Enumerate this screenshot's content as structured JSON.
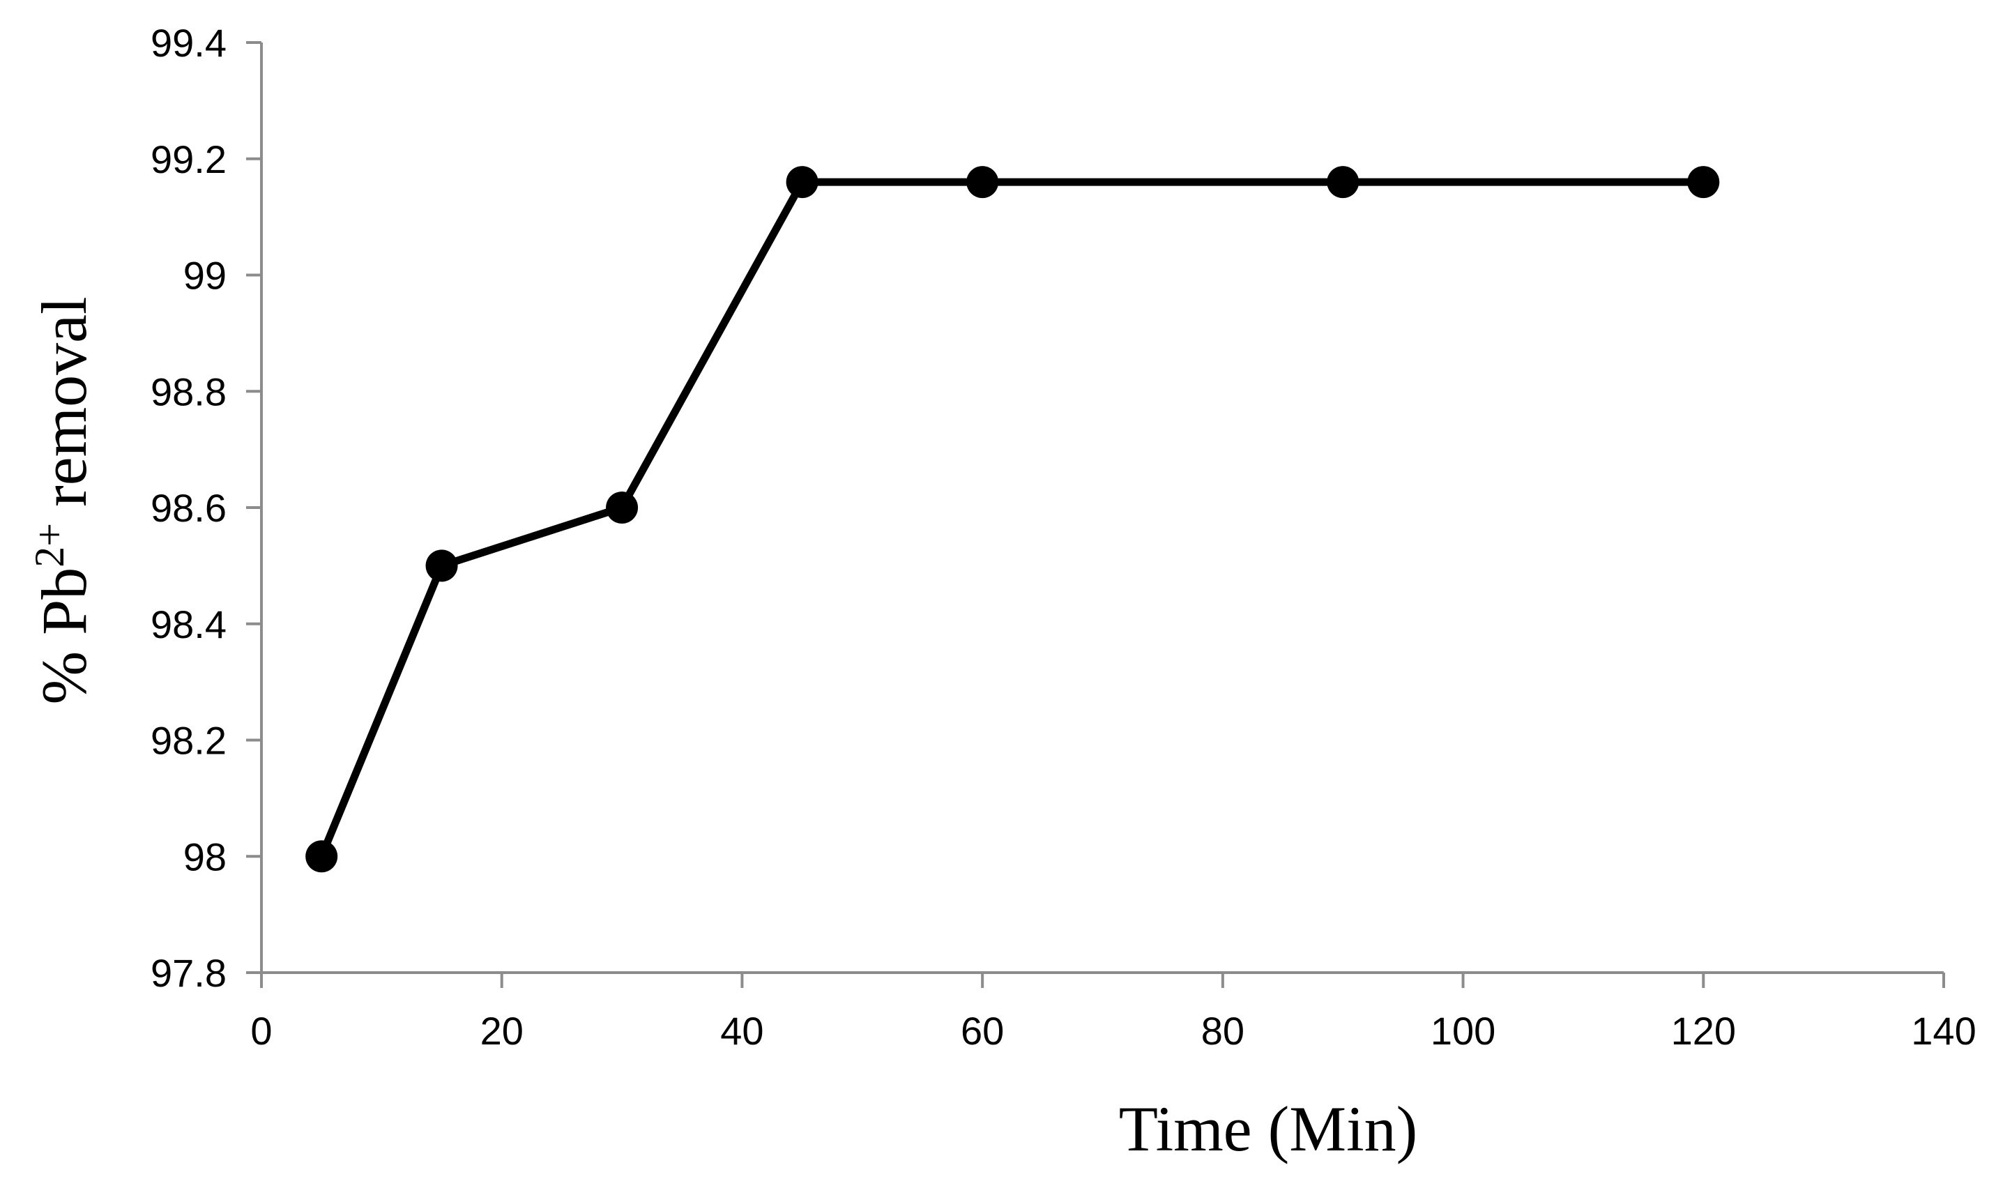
{
  "chart_data": {
    "type": "line",
    "title": "",
    "xlabel": "Time (Min)",
    "ylabel": {
      "prefix": "% Pb",
      "superscript": "2+",
      "suffix": " removal"
    },
    "xlim": [
      0,
      140
    ],
    "ylim": [
      97.8,
      99.4
    ],
    "x_ticks": [
      0,
      20,
      40,
      60,
      80,
      100,
      120,
      140
    ],
    "x_tick_labels": [
      "0",
      "20",
      "40",
      "60",
      "80",
      "100",
      "120",
      "140"
    ],
    "y_ticks": [
      97.8,
      98.0,
      98.2,
      98.4,
      98.6,
      98.8,
      99.0,
      99.2,
      99.4
    ],
    "y_tick_labels": [
      "97.8",
      "98",
      "98.2",
      "98.4",
      "98.6",
      "98.8",
      "99",
      "99.2",
      "99.4"
    ],
    "grid": false,
    "legend": "none",
    "series": [
      {
        "x": [
          5,
          15,
          30,
          45,
          60,
          90,
          120
        ],
        "y": [
          98.0,
          98.5,
          98.6,
          99.16,
          99.16,
          99.16,
          99.16
        ],
        "color": "#000000",
        "marker": "circle"
      }
    ],
    "axis_color": "#8c8c8c"
  }
}
